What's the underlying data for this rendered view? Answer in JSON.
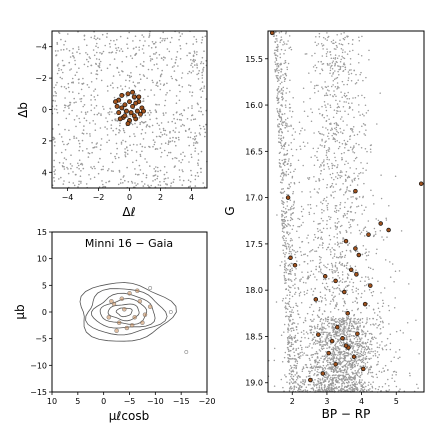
{
  "chart_data": [
    {
      "type": "scatter",
      "panel": "sky-position",
      "xlabel": "Δℓ",
      "ylabel": "Δb",
      "xlim": [
        -5,
        5
      ],
      "ylim": [
        -5,
        5
      ],
      "xticks": [
        "−4",
        "−2",
        "0",
        "2",
        "4"
      ],
      "yticks": [
        "−4",
        "−2",
        "0",
        "2",
        "4"
      ],
      "field_color": "#9a9a9a",
      "member_color": "#a0521d",
      "members": [
        {
          "x": -0.7,
          "y": 0.6
        },
        {
          "x": -0.5,
          "y": 0.9
        },
        {
          "x": -0.1,
          "y": 1.0
        },
        {
          "x": 0.3,
          "y": 0.8
        },
        {
          "x": 0.6,
          "y": 0.5
        },
        {
          "x": 0.8,
          "y": 0.1
        },
        {
          "x": 0.7,
          "y": -0.3
        },
        {
          "x": 0.4,
          "y": -0.6
        },
        {
          "x": 0.0,
          "y": -0.7
        },
        {
          "x": -0.4,
          "y": -0.5
        },
        {
          "x": -0.7,
          "y": -0.2
        },
        {
          "x": -0.8,
          "y": 0.2
        },
        {
          "x": -0.3,
          "y": 0.3
        },
        {
          "x": 0.2,
          "y": 0.2
        },
        {
          "x": 0.1,
          "y": -0.2
        },
        {
          "x": -0.2,
          "y": -0.1
        },
        {
          "x": 0.5,
          "y": -0.1
        },
        {
          "x": -0.5,
          "y": 0.1
        },
        {
          "x": 0.0,
          "y": 0.5
        },
        {
          "x": 0.3,
          "y": -0.4
        },
        {
          "x": -0.6,
          "y": -0.6
        },
        {
          "x": 0.6,
          "y": 0.8
        },
        {
          "x": -0.9,
          "y": 0.5
        },
        {
          "x": 0.9,
          "y": -0.1
        },
        {
          "x": -0.1,
          "y": -0.9
        },
        {
          "x": 0.2,
          "y": 1.1
        },
        {
          "x": -0.3,
          "y": -0.4
        },
        {
          "x": 0.4,
          "y": 0.4
        }
      ]
    },
    {
      "type": "scatter",
      "panel": "proper-motion",
      "title": "Minni 16  −  Gaia",
      "xlabel": "μℓcosb",
      "ylabel": "μb",
      "xlim": [
        10,
        -20
      ],
      "ylim": [
        -15,
        15
      ],
      "xticks": [
        "10",
        "5",
        "0",
        "−5",
        "−10",
        "−15",
        "−20"
      ],
      "yticks": [
        "15",
        "10",
        "5",
        "0",
        "−5",
        "−10",
        "−15"
      ],
      "contour_color": "#555555",
      "contour_center": [
        -4,
        0
      ],
      "contour_radii": [
        [
          1.5,
          0.8
        ],
        [
          3,
          1.5
        ],
        [
          4.5,
          2.3
        ],
        [
          6,
          3.2
        ],
        [
          7.5,
          4.3
        ],
        [
          9,
          5.5
        ]
      ],
      "members": [
        {
          "x": -2,
          "y": 1.5
        },
        {
          "x": -4,
          "y": 0.5
        },
        {
          "x": -6,
          "y": -1
        },
        {
          "x": -3,
          "y": -2
        },
        {
          "x": -7,
          "y": 2
        },
        {
          "x": -5,
          "y": 3.5
        },
        {
          "x": -1,
          "y": -1
        },
        {
          "x": -8,
          "y": -0.5
        },
        {
          "x": -4.5,
          "y": -3
        },
        {
          "x": -3.5,
          "y": 2.5
        },
        {
          "x": -9,
          "y": 1
        },
        {
          "x": -2.5,
          "y": -3.5
        },
        {
          "x": -6.5,
          "y": 4
        },
        {
          "x": -5.5,
          "y": -2.5
        },
        {
          "x": -1.5,
          "y": 2
        },
        {
          "x": -7.5,
          "y": -2
        }
      ],
      "outliers": [
        {
          "x": -13,
          "y": 0
        },
        {
          "x": -16,
          "y": -7.5
        },
        {
          "x": -9,
          "y": 4.5
        }
      ]
    },
    {
      "type": "scatter",
      "panel": "color-magnitude",
      "xlabel": "BP − RP",
      "ylabel": "G",
      "xlim": [
        1.3,
        5.8
      ],
      "ylim": [
        19.1,
        15.2
      ],
      "y_inverted": true,
      "xticks": [
        "2",
        "3",
        "4",
        "5"
      ],
      "yticks": [
        "15.5",
        "16.0",
        "16.5",
        "17.0",
        "17.5",
        "18.0",
        "18.5",
        "19.0"
      ],
      "members": [
        {
          "x": 1.42,
          "y": 15.22
        },
        {
          "x": 5.72,
          "y": 16.85
        },
        {
          "x": 1.88,
          "y": 17.0
        },
        {
          "x": 3.82,
          "y": 16.93
        },
        {
          "x": 1.95,
          "y": 17.65
        },
        {
          "x": 2.08,
          "y": 17.73
        },
        {
          "x": 3.55,
          "y": 17.47
        },
        {
          "x": 4.2,
          "y": 17.4
        },
        {
          "x": 4.55,
          "y": 17.28
        },
        {
          "x": 4.78,
          "y": 17.35
        },
        {
          "x": 3.82,
          "y": 17.55
        },
        {
          "x": 3.92,
          "y": 17.62
        },
        {
          "x": 2.95,
          "y": 17.85
        },
        {
          "x": 3.25,
          "y": 17.9
        },
        {
          "x": 3.7,
          "y": 17.78
        },
        {
          "x": 3.85,
          "y": 17.83
        },
        {
          "x": 4.25,
          "y": 17.95
        },
        {
          "x": 3.5,
          "y": 18.02
        },
        {
          "x": 2.68,
          "y": 18.1
        },
        {
          "x": 4.1,
          "y": 18.15
        },
        {
          "x": 3.6,
          "y": 18.25
        },
        {
          "x": 3.3,
          "y": 18.4
        },
        {
          "x": 3.88,
          "y": 18.47
        },
        {
          "x": 2.75,
          "y": 18.48
        },
        {
          "x": 3.45,
          "y": 18.52
        },
        {
          "x": 3.62,
          "y": 18.62
        },
        {
          "x": 3.05,
          "y": 18.68
        },
        {
          "x": 3.78,
          "y": 18.72
        },
        {
          "x": 3.25,
          "y": 18.8
        },
        {
          "x": 2.88,
          "y": 18.9
        },
        {
          "x": 2.52,
          "y": 18.97
        },
        {
          "x": 3.55,
          "y": 18.6
        },
        {
          "x": 3.15,
          "y": 18.55
        },
        {
          "x": 4.05,
          "y": 18.85
        }
      ]
    }
  ]
}
